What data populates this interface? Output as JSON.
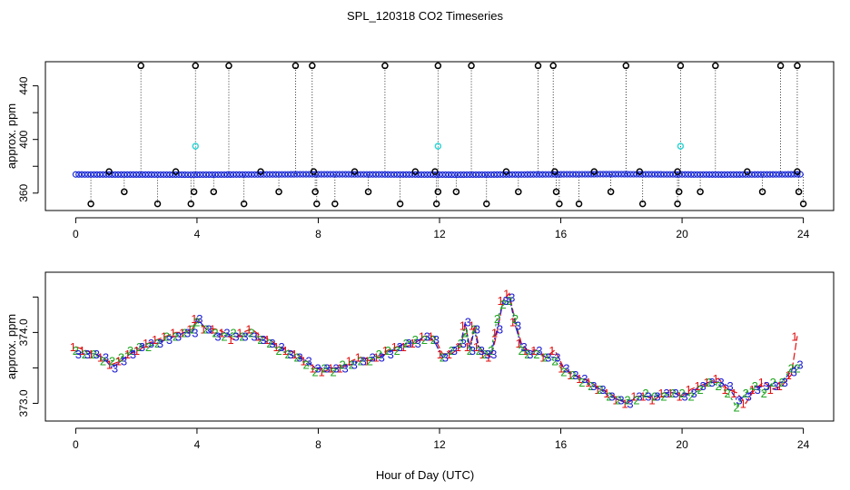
{
  "chart_data": [
    {
      "type": "scatter",
      "title": "SPL_120318  CO2 Timeseries",
      "xlabel": "",
      "ylabel": "approx. ppm",
      "xlim": [
        -1,
        25
      ],
      "ylim": [
        347,
        458
      ],
      "xticks": [
        0,
        4,
        8,
        12,
        16,
        20,
        24
      ],
      "xtick_labels": [
        "0",
        "4",
        "8",
        "12",
        "16",
        "20",
        "24"
      ],
      "yticks": [
        360,
        380,
        400,
        420,
        440
      ],
      "ytick_labels": [
        "360",
        "",
        "400",
        "",
        "440"
      ],
      "baseline_series": {
        "name": "CO2 (blue circles)",
        "color": "#1f2fd6",
        "x_start": 0,
        "x_end": 23.9,
        "x_step": 0.1,
        "values": [
          373.9,
          373.8,
          373.8,
          373.7,
          373.8,
          373.9,
          374.0,
          374.0,
          373.9,
          373.8,
          373.7,
          373.8,
          373.9,
          374.0,
          374.1,
          374.0,
          373.9,
          373.8,
          373.9,
          374.0
        ]
      },
      "highlight_series": {
        "name": "cyan points",
        "color": "#33d6d6",
        "x": [
          3.95,
          11.95,
          19.95
        ],
        "y": [
          395,
          395,
          395
        ]
      },
      "spike_series": {
        "name": "flagged points",
        "color": "#000000",
        "high_x": [
          2.15,
          3.95,
          5.05,
          7.25,
          7.8,
          10.2,
          11.95,
          13.05,
          15.25,
          15.75,
          18.15,
          19.95,
          21.1,
          23.25,
          23.8
        ],
        "high_y": 455,
        "low_x": [
          0.5,
          2.7,
          3.8,
          5.55,
          7.95,
          8.55,
          10.7,
          11.9,
          13.55,
          15.95,
          16.6,
          18.7,
          19.85,
          24.0
        ],
        "low_y": 352,
        "mid_x": [
          1.6,
          3.9,
          4.55,
          6.7,
          7.9,
          9.65,
          11.95,
          12.55,
          14.6,
          15.85,
          17.65,
          19.9,
          20.6,
          22.65,
          23.85
        ],
        "mid_y": 361,
        "top_x": [
          1.1,
          3.3,
          6.1,
          7.85,
          9.2,
          11.2,
          11.85,
          14.2,
          15.8,
          17.1,
          18.6,
          19.85,
          22.15,
          23.8
        ],
        "top_y": 376
      }
    },
    {
      "type": "line",
      "title": "",
      "xlabel": "Hour of Day (UTC)",
      "ylabel": "approx. ppm",
      "xlim": [
        -1,
        25
      ],
      "ylim": [
        372.75,
        374.85
      ],
      "xticks": [
        0,
        4,
        8,
        12,
        16,
        20,
        24
      ],
      "xtick_labels": [
        "0",
        "4",
        "8",
        "12",
        "16",
        "20",
        "24"
      ],
      "yticks": [
        373.0,
        373.5,
        374.0,
        374.5
      ],
      "ytick_labels": [
        "373.0",
        "",
        "374.0",
        ""
      ],
      "x": [
        0.0,
        0.3,
        0.6,
        0.9,
        1.2,
        1.5,
        1.8,
        2.1,
        2.4,
        2.7,
        3.0,
        3.3,
        3.6,
        3.85,
        4.0,
        4.3,
        4.6,
        4.9,
        5.2,
        5.5,
        5.8,
        6.1,
        6.4,
        6.7,
        7.0,
        7.3,
        7.6,
        7.9,
        8.2,
        8.5,
        8.8,
        9.1,
        9.4,
        9.7,
        10.0,
        10.3,
        10.6,
        10.9,
        11.2,
        11.5,
        11.8,
        12.1,
        12.4,
        12.7,
        12.85,
        13.0,
        13.15,
        13.3,
        13.5,
        13.7,
        13.9,
        14.1,
        14.3,
        14.5,
        14.7,
        14.9,
        15.2,
        15.5,
        15.8,
        16.1,
        16.4,
        16.7,
        17.0,
        17.3,
        17.6,
        17.9,
        18.2,
        18.5,
        18.8,
        19.1,
        19.4,
        19.7,
        20.0,
        20.3,
        20.6,
        20.9,
        21.2,
        21.5,
        21.8,
        22.1,
        22.4,
        22.7,
        23.0,
        23.3,
        23.6,
        23.8
      ],
      "series": [
        {
          "name": "1",
          "color": "#e01010",
          "values": [
            373.8,
            373.75,
            373.7,
            373.65,
            373.55,
            373.6,
            373.7,
            373.75,
            373.85,
            373.9,
            373.95,
            374.0,
            374.0,
            374.05,
            374.2,
            374.05,
            374.05,
            374.0,
            373.9,
            374.0,
            374.05,
            373.95,
            373.9,
            373.8,
            373.75,
            373.7,
            373.6,
            373.5,
            373.45,
            373.5,
            373.5,
            373.6,
            373.65,
            373.6,
            373.65,
            373.75,
            373.8,
            373.8,
            373.85,
            373.95,
            373.95,
            373.7,
            373.7,
            373.8,
            374.1,
            373.8,
            374.1,
            373.8,
            373.7,
            373.65,
            374.0,
            374.45,
            374.55,
            374.15,
            373.85,
            373.75,
            373.75,
            373.65,
            373.75,
            373.5,
            373.4,
            373.35,
            373.3,
            373.2,
            373.15,
            373.05,
            373.0,
            373.1,
            373.1,
            373.05,
            373.15,
            373.15,
            373.1,
            373.2,
            373.25,
            373.3,
            373.35,
            373.2,
            373.15,
            373.0,
            373.2,
            373.3,
            373.2,
            373.25,
            373.4,
            373.95
          ]
        },
        {
          "name": "2",
          "color": "#1fa51f",
          "values": [
            373.75,
            373.7,
            373.7,
            373.6,
            373.6,
            373.65,
            373.75,
            373.8,
            373.8,
            373.85,
            373.95,
            373.95,
            374.0,
            374.05,
            374.15,
            374.05,
            374.0,
            373.95,
            374.0,
            373.95,
            374.0,
            373.9,
            373.85,
            373.75,
            373.7,
            373.65,
            373.55,
            373.45,
            373.5,
            373.45,
            373.55,
            373.55,
            373.6,
            373.6,
            373.7,
            373.75,
            373.75,
            373.85,
            373.9,
            373.9,
            373.9,
            373.65,
            373.75,
            373.85,
            374.0,
            373.75,
            374.05,
            373.75,
            373.7,
            373.75,
            374.2,
            374.4,
            374.45,
            374.2,
            373.75,
            373.7,
            373.7,
            373.65,
            373.6,
            373.45,
            373.4,
            373.3,
            373.25,
            373.2,
            373.1,
            373.05,
            373.05,
            373.05,
            373.15,
            373.1,
            373.1,
            373.15,
            373.15,
            373.1,
            373.2,
            373.3,
            373.25,
            373.15,
            372.95,
            373.15,
            373.25,
            373.15,
            373.3,
            373.3,
            373.5,
            373.5
          ]
        },
        {
          "name": "3",
          "color": "#1a1ad4",
          "values": [
            373.7,
            373.7,
            373.7,
            373.65,
            373.5,
            373.6,
            373.7,
            373.8,
            373.85,
            373.85,
            373.9,
            373.95,
            374.0,
            374.0,
            374.2,
            374.05,
            373.95,
            374.0,
            373.95,
            373.95,
            373.95,
            373.9,
            373.85,
            373.8,
            373.7,
            373.65,
            373.6,
            373.5,
            373.5,
            373.5,
            373.5,
            373.55,
            373.6,
            373.65,
            373.65,
            373.7,
            373.8,
            373.85,
            373.85,
            373.95,
            373.9,
            373.65,
            373.75,
            373.85,
            374.15,
            373.75,
            374.05,
            373.75,
            373.7,
            373.7,
            374.05,
            374.45,
            374.5,
            374.1,
            373.8,
            373.7,
            373.75,
            373.65,
            373.65,
            373.5,
            373.4,
            373.35,
            373.25,
            373.2,
            373.1,
            373.05,
            373.0,
            373.1,
            373.1,
            373.1,
            373.15,
            373.15,
            373.1,
            373.15,
            373.25,
            373.3,
            373.3,
            373.25,
            373.05,
            373.1,
            373.2,
            373.25,
            373.25,
            373.3,
            373.45,
            373.55
          ]
        }
      ]
    }
  ]
}
